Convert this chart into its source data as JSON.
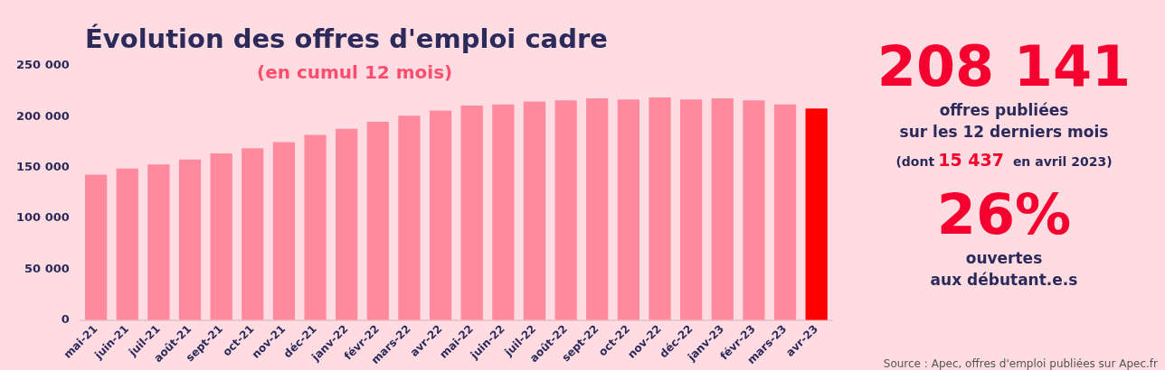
{
  "chart_data": {
    "type": "bar",
    "title": "Évolution des offres d'emploi cadre",
    "subtitle": "(en cumul 12 mois)",
    "categories": [
      "mai-21",
      "juin-21",
      "juil-21",
      "août-21",
      "sept-21",
      "oct-21",
      "nov-21",
      "déc-21",
      "janv-22",
      "févr-22",
      "mars-22",
      "avr-22",
      "mai-22",
      "juin-22",
      "juil-22",
      "août-22",
      "sept-22",
      "oct-22",
      "nov-22",
      "déc-22",
      "janv-23",
      "févr-23",
      "mars-23",
      "avr-23"
    ],
    "values": [
      143000,
      149000,
      153000,
      158000,
      164000,
      169000,
      175000,
      182000,
      188000,
      195000,
      201000,
      206000,
      211000,
      212000,
      215000,
      216000,
      218000,
      217000,
      219000,
      217000,
      218000,
      216000,
      212000,
      208000
    ],
    "colors": [
      "#ff8a9e",
      "#ff8a9e",
      "#ff8a9e",
      "#ff8a9e",
      "#ff8a9e",
      "#ff8a9e",
      "#ff8a9e",
      "#ff8a9e",
      "#ff8a9e",
      "#ff8a9e",
      "#ff8a9e",
      "#ff8a9e",
      "#ff8a9e",
      "#ff8a9e",
      "#ff8a9e",
      "#ff8a9e",
      "#ff8a9e",
      "#ff8a9e",
      "#ff8a9e",
      "#ff8a9e",
      "#ff8a9e",
      "#ff8a9e",
      "#ff8a9e",
      "#ff0000"
    ],
    "ylim": [
      0,
      250000
    ],
    "yticks": [
      {
        "value": 0,
        "label": "0"
      },
      {
        "value": 50000,
        "label": "50 000"
      },
      {
        "value": 100000,
        "label": "100 000"
      },
      {
        "value": 150000,
        "label": "150 000"
      },
      {
        "value": 200000,
        "label": "200 000"
      },
      {
        "value": 250000,
        "label": "250 000"
      }
    ],
    "grid": false,
    "legend": false,
    "annotations": [
      "208 141",
      "offres publiées\nsur les 12 derniers mois",
      "(dont",
      "15 437",
      "en avril 2023)",
      "26%",
      "ouvertes\naux débutant.e.s",
      "Source : Apec, offres d'emploi publiées sur Apec.fr"
    ]
  }
}
